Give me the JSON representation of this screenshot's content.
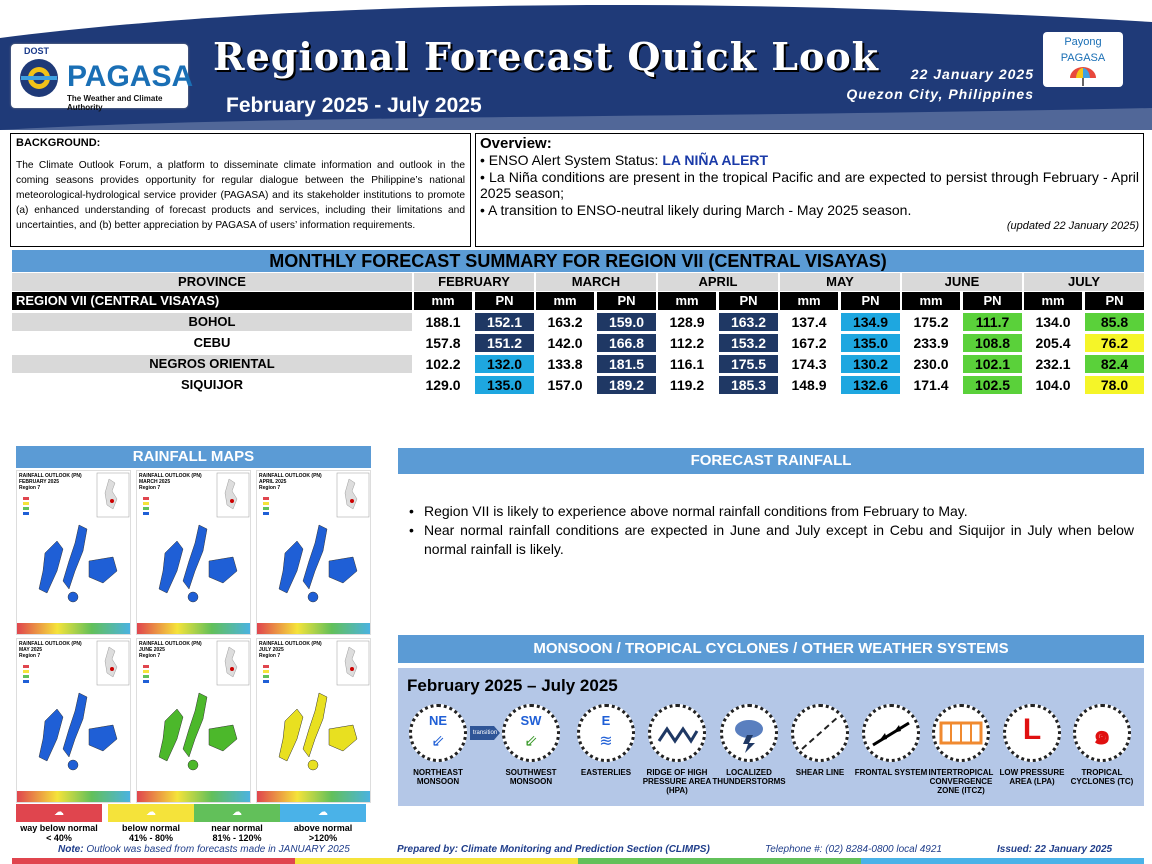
{
  "header": {
    "dost": "DOST",
    "agency": "PAGASA",
    "agency_tagline": "The Weather and Climate Authority",
    "title": "Regional Forecast Quick Look",
    "period": "February 2025 - July 2025",
    "date": "22 January 2025",
    "place": "Quezon City, Philippines",
    "payong_line1": "Payong",
    "payong_line2": "PAGASA"
  },
  "background": {
    "heading": "BACKGROUND:",
    "text": "The Climate Outlook Forum, a platform to disseminate climate information and outlook in the coming seasons provides opportunity for regular dialogue between the Philippine’s national meteorological-hydrological service provider (PAGASA) and its stakeholder institutions to promote (a) enhanced understanding of forecast products and services, including their limitations and uncertainties, and (b) better appreciation by PAGASA of users’ information requirements."
  },
  "overview": {
    "heading": "Overview:",
    "enso_label": "ENSO Alert System Status: ",
    "enso_status": "LA NIÑA ALERT",
    "line2": "La Niña conditions are present in the tropical Pacific and are expected to persist through February - April 2025 season;",
    "line3": "A transition to ENSO-neutral likely during March - May 2025 season.",
    "updated": "(updated 22 January 2025)"
  },
  "summary": {
    "title": "MONTHLY FORECAST SUMMARY FOR REGION VII (CENTRAL VISAYAS)",
    "province_header": "PROVINCE",
    "region_label": "REGION VII (CENTRAL VISAYAS)",
    "months": [
      "FEBRUARY",
      "MARCH",
      "APRIL",
      "MAY",
      "JUNE",
      "JULY"
    ],
    "col_mm": "mm",
    "col_pn": "PN",
    "rows": [
      {
        "province": "BOHOL",
        "values": [
          [
            "188.1",
            "152.1"
          ],
          [
            "163.2",
            "159.0"
          ],
          [
            "128.9",
            "163.2"
          ],
          [
            "137.4",
            "134.9"
          ],
          [
            "175.2",
            "111.7"
          ],
          [
            "134.0",
            "85.8"
          ]
        ]
      },
      {
        "province": "CEBU",
        "values": [
          [
            "157.8",
            "151.2"
          ],
          [
            "142.0",
            "166.8"
          ],
          [
            "112.2",
            "153.2"
          ],
          [
            "167.2",
            "135.0"
          ],
          [
            "233.9",
            "108.8"
          ],
          [
            "205.4",
            "76.2"
          ]
        ]
      },
      {
        "province": "NEGROS ORIENTAL",
        "values": [
          [
            "102.2",
            "132.0"
          ],
          [
            "133.8",
            "181.5"
          ],
          [
            "116.1",
            "175.5"
          ],
          [
            "174.3",
            "130.2"
          ],
          [
            "230.0",
            "102.1"
          ],
          [
            "232.1",
            "82.4"
          ]
        ]
      },
      {
        "province": "SIQUIJOR",
        "values": [
          [
            "129.0",
            "135.0"
          ],
          [
            "157.0",
            "189.2"
          ],
          [
            "119.2",
            "185.3"
          ],
          [
            "148.9",
            "132.6"
          ],
          [
            "171.4",
            "102.5"
          ],
          [
            "104.0",
            "78.0"
          ]
        ]
      }
    ],
    "pn_colors": {
      "above_light": "#1ea7e0",
      "above_dark": "#1f3864",
      "near": "#5ad13a",
      "below": "#f5f528"
    }
  },
  "rainfall_maps": {
    "title": "RAINFALL MAPS",
    "maps": [
      {
        "l1": "RAINFALL OUTLOOK (PN)",
        "l2": "FEBRUARY 2025",
        "l3": "Region 7",
        "color": "#1f5fd6"
      },
      {
        "l1": "RAINFALL OUTLOOK (PN)",
        "l2": "MARCH 2025",
        "l3": "Region 7",
        "color": "#1f5fd6"
      },
      {
        "l1": "RAINFALL OUTLOOK (PN)",
        "l2": "APRIL 2025",
        "l3": "Region 7",
        "color": "#1f5fd6"
      },
      {
        "l1": "RAINFALL OUTLOOK (PN)",
        "l2": "MAY 2025",
        "l3": "Region 7",
        "color": "#1f5fd6"
      },
      {
        "l1": "RAINFALL OUTLOOK (PN)",
        "l2": "JUNE 2025",
        "l3": "Region 7",
        "color": "#4cb82b"
      },
      {
        "l1": "RAINFALL OUTLOOK (PN)",
        "l2": "JULY 2025",
        "l3": "Region 7",
        "color": "#e8e020"
      }
    ],
    "legend": [
      {
        "label": "way below normal",
        "range": "< 40%",
        "color": "#e0454e"
      },
      {
        "label": "below normal",
        "range": "41% - 80%",
        "color": "#f5e33a"
      },
      {
        "label": "near normal",
        "range": "81% - 120%",
        "color": "#62c05a"
      },
      {
        "label": "above normal",
        "range": ">120%",
        "color": "#4ab2e8"
      }
    ]
  },
  "forecast_rainfall": {
    "title": "FORECAST RAINFALL",
    "bullets": [
      "Region VII is likely to experience above normal rainfall conditions from February to May.",
      "Near normal rainfall conditions are expected in June and July except in Cebu and Siquijor in July when below normal rainfall is likely."
    ]
  },
  "systems": {
    "title": "MONSOON / TROPICAL CYCLONES / OTHER WEATHER SYSTEMS",
    "period": "February 2025 – July 2025",
    "transition": "transition",
    "items": [
      {
        "icon": "northeast-monsoon-icon",
        "glyph": "NE",
        "label": "NORTHEAST MONSOON"
      },
      {
        "icon": "southwest-monsoon-icon",
        "glyph": "SW",
        "label": "SOUTHWEST MONSOON"
      },
      {
        "icon": "easterlies-icon",
        "glyph": "E",
        "label": "EASTERLIES"
      },
      {
        "icon": "ridge-icon",
        "glyph": "",
        "label": "RIDGE OF HIGH PRESSURE AREA (HPA)"
      },
      {
        "icon": "thunderstorm-icon",
        "glyph": "",
        "label": "LOCALIZED THUNDERSTORMS"
      },
      {
        "icon": "shear-line-icon",
        "glyph": "",
        "label": "SHEAR LINE"
      },
      {
        "icon": "frontal-system-icon",
        "glyph": "",
        "label": "FRONTAL SYSTEM"
      },
      {
        "icon": "itcz-icon",
        "glyph": "",
        "label": "INTERTROPICAL CONVERGENCE ZONE (ITCZ)"
      },
      {
        "icon": "low-pressure-icon",
        "glyph": "L",
        "label": "LOW PRESSURE AREA (LPA)"
      },
      {
        "icon": "tropical-cyclone-icon",
        "glyph": "๑",
        "label": "TROPICAL CYCLONES (TC)"
      }
    ]
  },
  "footer": {
    "note_label": "Note:",
    "note": " Outlook was based from forecasts made in JANUARY 2025",
    "prepared": "Prepared by: Climate Monitoring and Prediction Section (CLIMPS)",
    "telephone": "Telephone #: (02) 8284-0800 local 4921",
    "issued": "Issued: 22 January 2025"
  }
}
